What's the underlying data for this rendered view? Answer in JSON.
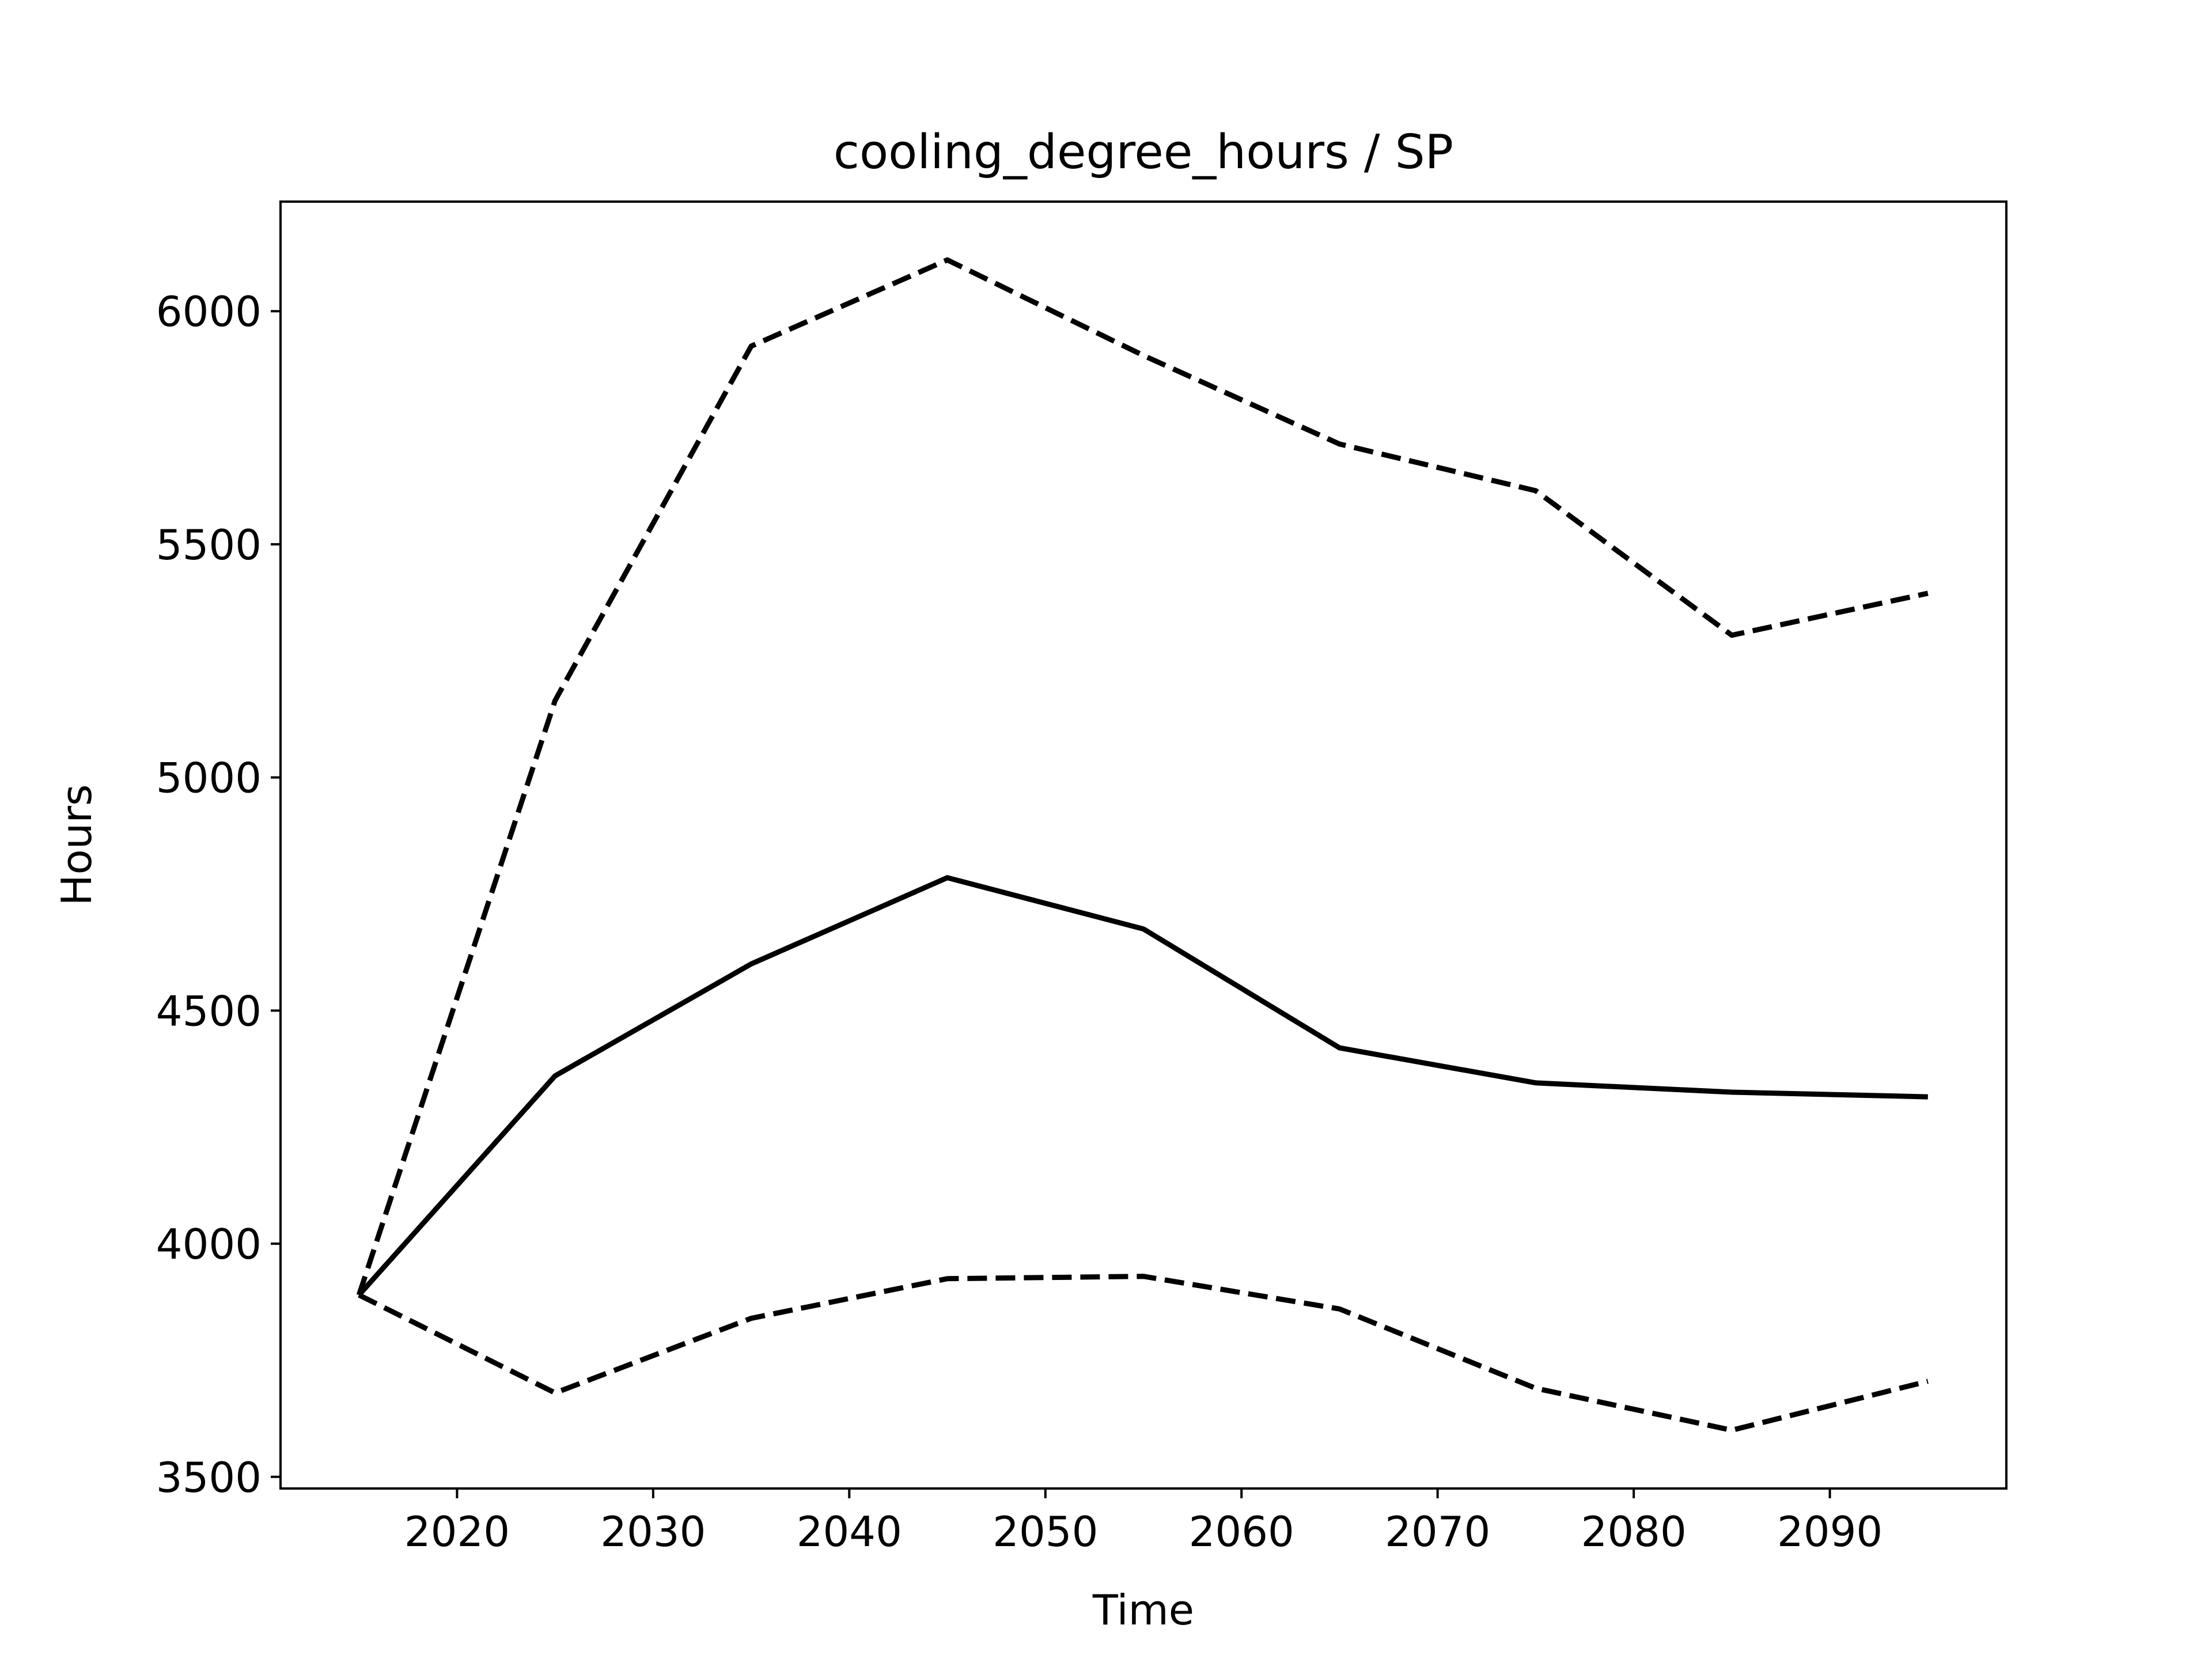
{
  "chart_data": {
    "type": "line",
    "title": "cooling_degree_hours / SP",
    "xlabel": "Time",
    "ylabel": "Hours",
    "xlim": [
      2011,
      2099
    ],
    "ylim": [
      3475,
      6235
    ],
    "xticks": [
      2020,
      2030,
      2040,
      2050,
      2060,
      2070,
      2080,
      2090
    ],
    "yticks": [
      3500,
      4000,
      4500,
      5000,
      5500,
      6000
    ],
    "grid": false,
    "legend": "none",
    "x": [
      2015,
      2025,
      2035,
      2045,
      2055,
      2065,
      2075,
      2085,
      2095
    ],
    "series": [
      {
        "style": "solid",
        "color": "#000000",
        "values": [
          3890,
          4360,
          4600,
          4785,
          4675,
          4420,
          4345,
          4325,
          4315
        ]
      },
      {
        "style": "dashed",
        "color": "#000000",
        "values": [
          3890,
          5165,
          5925,
          6110,
          5905,
          5715,
          5615,
          5305,
          5395
        ]
      },
      {
        "style": "dashed",
        "color": "#000000",
        "values": [
          3890,
          3680,
          3840,
          3925,
          3930,
          3860,
          3690,
          3600,
          3705
        ]
      }
    ]
  }
}
